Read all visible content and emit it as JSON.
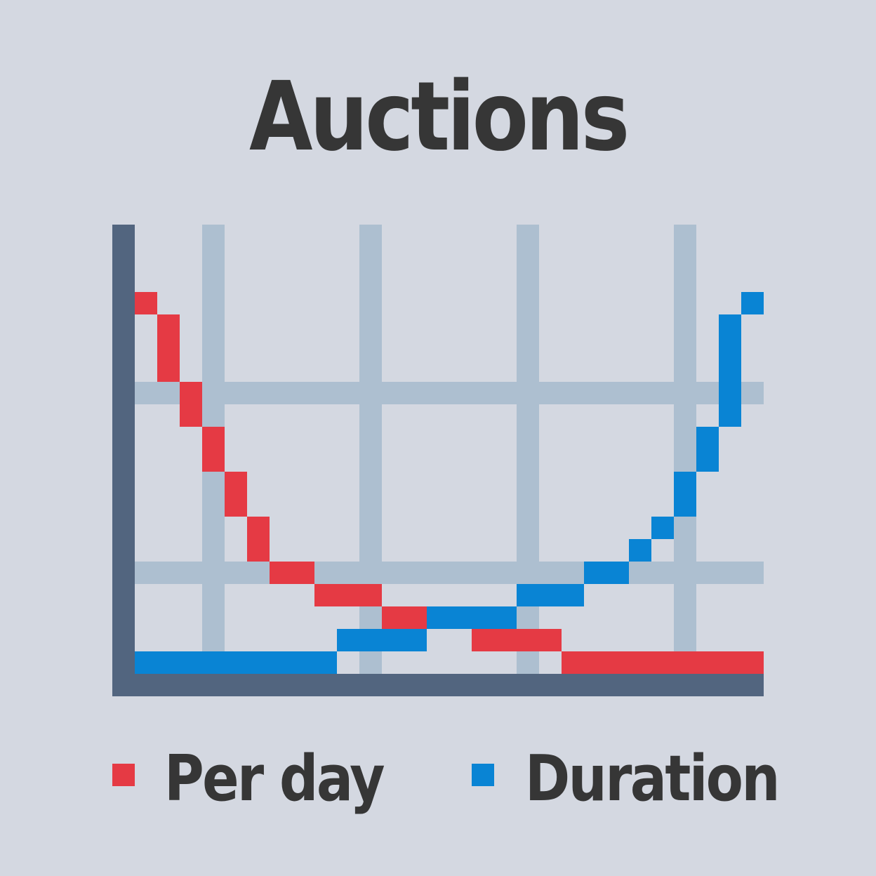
{
  "title": "Auctions",
  "colors": {
    "background": "#d4d8e1",
    "text": "#363636",
    "axis": "#52657f",
    "grid": "#adbfd0",
    "per_day": "#e53a44",
    "duration": "#0984d4"
  },
  "chart_data": {
    "type": "line",
    "title": "Auctions",
    "xlabel": "",
    "ylabel": "",
    "x": [
      0,
      1,
      2,
      3,
      4,
      5,
      6,
      7,
      8,
      9,
      10,
      11,
      12,
      13,
      14,
      15,
      16,
      17,
      18,
      19,
      20,
      21,
      22,
      23,
      24,
      25,
      26,
      27
    ],
    "xlim": [
      0,
      28
    ],
    "ylim": [
      0,
      20
    ],
    "x_gridlines": [
      3.5,
      10.5,
      17.5,
      24.5
    ],
    "y_gridlines": [
      4.5,
      12.5
    ],
    "grid": true,
    "legend_position": "bottom",
    "series": [
      {
        "name": "Per day",
        "color": "#e53a44",
        "values": [
          17,
          14,
          12,
          10,
          8,
          6,
          5,
          5,
          4,
          4,
          4,
          3,
          3,
          3,
          3,
          2,
          2,
          2,
          2,
          1,
          1,
          1,
          1,
          1,
          1,
          1,
          1,
          1
        ]
      },
      {
        "name": "Duration",
        "color": "#0984d4",
        "values": [
          1,
          1,
          1,
          1,
          1,
          1,
          1,
          1,
          1,
          2,
          2,
          2,
          2,
          3,
          3,
          3,
          3,
          4,
          4,
          4,
          5,
          5,
          6,
          7,
          8,
          10,
          12,
          17
        ]
      }
    ]
  },
  "legend": {
    "per_day": "Per day",
    "duration": "Duration"
  }
}
